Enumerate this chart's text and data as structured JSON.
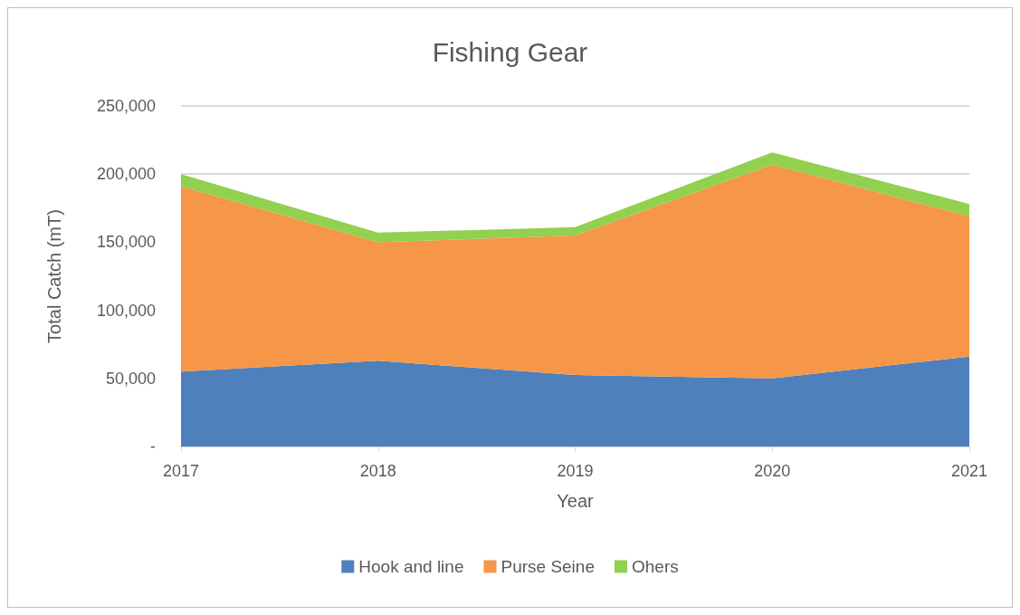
{
  "chart_data": {
    "type": "area",
    "title": "Fishing Gear",
    "xlabel": "Year",
    "ylabel": "Total Catch (mT)",
    "stacked": true,
    "categories": [
      "2017",
      "2018",
      "2019",
      "2020",
      "2021"
    ],
    "series": [
      {
        "name": "Hook and line",
        "color": "#4e80bb",
        "values": [
          55000,
          63000,
          52500,
          50000,
          66000
        ]
      },
      {
        "name": "Purse Seine",
        "color": "#f59648",
        "values": [
          136000,
          87000,
          102500,
          157000,
          103000
        ]
      },
      {
        "name": "Ohers",
        "color": "#92d050",
        "values": [
          9000,
          7000,
          6000,
          9000,
          9000
        ]
      }
    ],
    "ylim": [
      0,
      250000
    ],
    "yticks": [
      {
        "value": 0,
        "label": "-"
      },
      {
        "value": 50000,
        "label": "50,000"
      },
      {
        "value": 100000,
        "label": "100,000"
      },
      {
        "value": 150000,
        "label": "150,000"
      },
      {
        "value": 200000,
        "label": "200,000"
      },
      {
        "value": 250000,
        "label": "250,000"
      }
    ],
    "grid": "y",
    "legend": "bottom"
  }
}
